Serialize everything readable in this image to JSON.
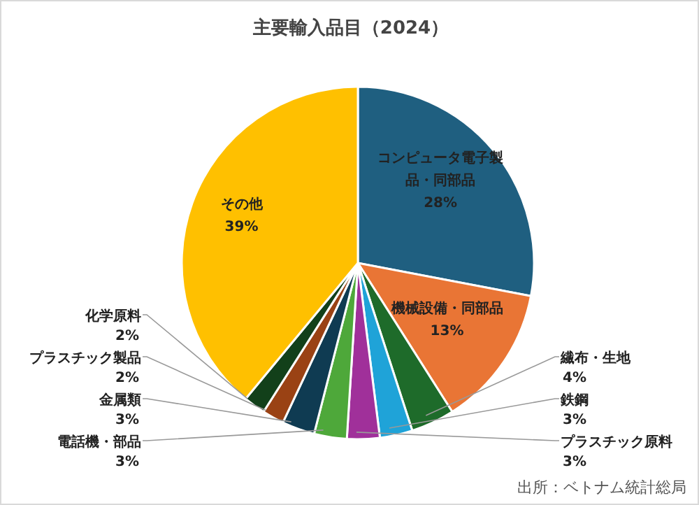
{
  "chart_data": {
    "type": "pie",
    "title": "主要輸入品目（2024）",
    "categories": [
      "コンピュータ電子製品・同部品",
      "機械設備・同部品",
      "繊布・生地",
      "鉄鋼",
      "プラスチック原料",
      "電話機・部品",
      "金属類",
      "プラスチック製品",
      "化学原料",
      "その他"
    ],
    "values": [
      28,
      13,
      4,
      3,
      3,
      3,
      3,
      2,
      2,
      39
    ],
    "value_labels": [
      "28%",
      "13%",
      "4%",
      "3%",
      "3%",
      "3%",
      "3%",
      "2%",
      "2%",
      "39%"
    ],
    "colors": [
      "#1f5f80",
      "#e97535",
      "#1e6b2a",
      "#1fa3d8",
      "#a0309a",
      "#4ea83a",
      "#0f3b52",
      "#9a4214",
      "#12401a",
      "#ffc000"
    ],
    "annotations": [
      "出所：ベトナム統計総局"
    ]
  }
}
